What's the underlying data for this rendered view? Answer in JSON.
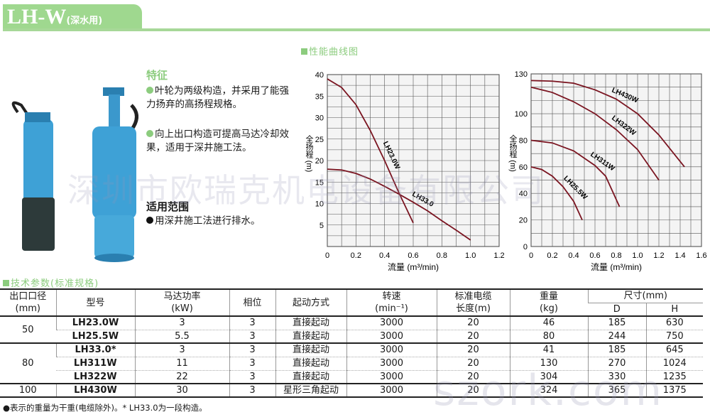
{
  "header": {
    "title": "LH-W",
    "subtitle": "(深水用)"
  },
  "sections": {
    "curves": "性能曲线图",
    "specs": "技术参数(标准规格)"
  },
  "features": {
    "title": "特征",
    "items": [
      "叶轮为两级构造，并采用了能强力扬弃的高扬程规格。",
      "向上出口构造可提高马达冷却效果，适用于深井施工法。"
    ]
  },
  "scope": {
    "title": "适用范围",
    "items": [
      "用深井施工法进行排水。"
    ]
  },
  "watermark": {
    "company": "深圳市欧瑞克机电设备有限公司",
    "site": "szork.com"
  },
  "chart_data": [
    {
      "type": "line",
      "xlabel": "流量 (m³/min)",
      "ylabel": "全扬程 (m)",
      "xlim": [
        0,
        1.2
      ],
      "ylim": [
        0,
        40
      ],
      "xticks": [
        "0",
        "0.2",
        "0.4",
        "0.6",
        "0.8",
        "1.0",
        "1.2"
      ],
      "yticks": [
        "5",
        "10",
        "15",
        "20",
        "25",
        "30",
        "35",
        "40"
      ],
      "grid": true,
      "series": [
        {
          "name": "LH23.0W",
          "x": [
            0,
            0.1,
            0.2,
            0.3,
            0.4,
            0.5,
            0.6
          ],
          "y": [
            39,
            37,
            33,
            27,
            20,
            12.5,
            5.5
          ]
        },
        {
          "name": "LH33.0",
          "x": [
            0,
            0.1,
            0.2,
            0.3,
            0.4,
            0.5,
            0.6,
            0.7,
            0.8,
            0.9,
            1.0
          ],
          "y": [
            18,
            17.8,
            17,
            15.7,
            14,
            12.2,
            10.3,
            8.3,
            6,
            3.8,
            1.5
          ]
        }
      ]
    },
    {
      "type": "line",
      "xlabel": "流量 (m³/min)",
      "ylabel": "全扬程 (m)",
      "xlim": [
        0,
        1.6
      ],
      "ylim": [
        0,
        130
      ],
      "xticks": [
        "0",
        "0.2",
        "0.4",
        "0.6",
        "0.8",
        "1.0",
        "1.2",
        "1.4",
        "1.6"
      ],
      "yticks": [
        "0",
        "20",
        "40",
        "60",
        "80",
        "100",
        "130"
      ],
      "grid": true,
      "series": [
        {
          "name": "LH430W",
          "x": [
            0,
            0.2,
            0.4,
            0.6,
            0.8,
            1.0,
            1.2,
            1.44
          ],
          "y": [
            125,
            124.5,
            123,
            118,
            111,
            100,
            84,
            60
          ]
        },
        {
          "name": "LH322W",
          "x": [
            0,
            0.2,
            0.4,
            0.6,
            0.8,
            1.0,
            1.2
          ],
          "y": [
            120,
            116,
            109,
            100,
            88,
            73,
            50
          ]
        },
        {
          "name": "LH311W",
          "x": [
            0,
            0.2,
            0.4,
            0.6,
            0.7,
            0.83
          ],
          "y": [
            80,
            78,
            72,
            61,
            53,
            30
          ]
        },
        {
          "name": "LH25.5W",
          "x": [
            0,
            0.1,
            0.2,
            0.3,
            0.4,
            0.48
          ],
          "y": [
            60,
            58,
            53,
            45,
            34,
            20
          ]
        }
      ]
    }
  ],
  "table": {
    "headers": {
      "outlet": "出口口径",
      "outlet_unit": "(mm)",
      "model": "型号",
      "power": "马达功率",
      "power_unit": "(kW)",
      "phase": "相位",
      "start": "起动方式",
      "speed": "转速",
      "speed_unit": "(min⁻¹)",
      "cable": "标准电缆",
      "cable_unit": "长度(m)",
      "weight": "重量",
      "weight_unit": "(kg)",
      "dim": "尺寸(mm)",
      "d": "D",
      "h": "H"
    },
    "groups": [
      "50",
      "80",
      "100"
    ],
    "rows": [
      {
        "model": "LH23.0W",
        "power": "3",
        "phase": "3",
        "start": "直接起动",
        "speed": "3000",
        "cable": "20",
        "weight": "46",
        "d": "185",
        "h": "630"
      },
      {
        "model": "LH25.5W",
        "power": "5.5",
        "phase": "3",
        "start": "直接起动",
        "speed": "3000",
        "cable": "20",
        "weight": "80",
        "d": "244",
        "h": "750"
      },
      {
        "model": "LH33.0*",
        "power": "3",
        "phase": "3",
        "start": "直接起动",
        "speed": "3000",
        "cable": "20",
        "weight": "41",
        "d": "185",
        "h": "645"
      },
      {
        "model": "LH311W",
        "power": "11",
        "phase": "3",
        "start": "直接起动",
        "speed": "3000",
        "cable": "20",
        "weight": "130",
        "d": "270",
        "h": "1024"
      },
      {
        "model": "LH322W",
        "power": "22",
        "phase": "3",
        "start": "直接起动",
        "speed": "3000",
        "cable": "20",
        "weight": "304",
        "d": "330",
        "h": "1235"
      },
      {
        "model": "LH430W",
        "power": "30",
        "phase": "3",
        "start": "星形三角起动",
        "speed": "3000",
        "cable": "20",
        "weight": "324",
        "d": "365",
        "h": "1375"
      }
    ],
    "note": "●表示的重量为干重(电缆除外)。* LH33.0为一段构造。"
  }
}
